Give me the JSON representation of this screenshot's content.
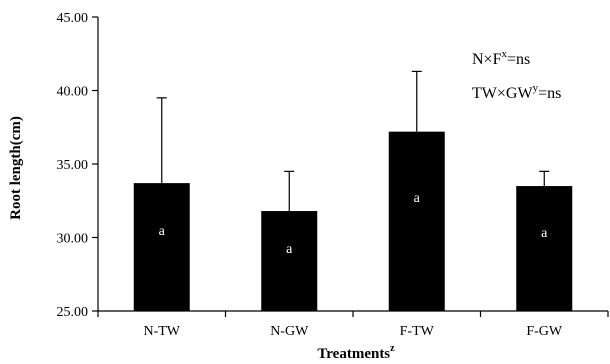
{
  "chart_data": {
    "type": "bar",
    "xlabel": "Treatments",
    "xlabel_sup": "z",
    "ylabel": "Root length(cm)",
    "ylim": [
      25,
      45
    ],
    "yticks": [
      "25.00",
      "30.00",
      "35.00",
      "40.00",
      "45.00"
    ],
    "categories": [
      "N-TW",
      "N-GW",
      "F-TW",
      "F-GW"
    ],
    "values": [
      33.7,
      31.8,
      37.2,
      33.5
    ],
    "errors": [
      5.8,
      2.7,
      4.1,
      1.0
    ],
    "bar_labels": [
      "a",
      "a",
      "a",
      "a"
    ],
    "annotations": [
      {
        "pre": "N×F",
        "sup": "x",
        "post": "=ns"
      },
      {
        "pre": "TW×GW",
        "sup": "y",
        "post": "=ns"
      }
    ],
    "grid": false,
    "bar_color": "#000000"
  }
}
